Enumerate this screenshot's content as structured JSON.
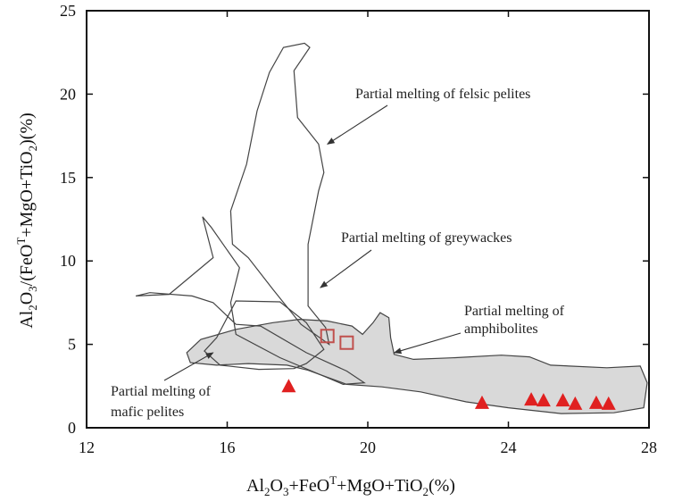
{
  "chart_data": {
    "type": "scatter",
    "xlabel": {
      "a": "Al",
      "a_sub": "2",
      "b": "O",
      "b_sub": "3",
      "c": "+FeO",
      "c_sup": "T",
      "d": "+MgO+TiO",
      "d_sub": "2",
      "e": "(%)"
    },
    "ylabel": {
      "a": "Al",
      "a_sub": "2",
      "b": "O",
      "b_sub": "3",
      "c": "/(FeO",
      "c_sup": "T",
      "d": "+MgO+TiO",
      "d_sub": "2",
      "e": ")(%)"
    },
    "xlim": [
      12,
      28
    ],
    "ylim": [
      0,
      25
    ],
    "x_ticks": [
      "12",
      "16",
      "20",
      "24",
      "28"
    ],
    "x_tick_values": [
      12,
      16,
      20,
      24,
      28
    ],
    "y_ticks": [
      "0",
      "5",
      "10",
      "15",
      "20",
      "25"
    ],
    "y_tick_values": [
      0,
      5,
      10,
      15,
      20,
      25
    ],
    "grid": false,
    "fields": [
      {
        "name": "felsic-pelites",
        "filled": false,
        "points": [
          [
            18.3,
            7.3
          ],
          [
            18.8,
            6.0
          ],
          [
            18.9,
            5.0
          ],
          [
            18.1,
            6.2
          ],
          [
            17.3,
            8.3
          ],
          [
            16.6,
            10.2
          ],
          [
            16.15,
            11.0
          ],
          [
            16.1,
            13.0
          ],
          [
            16.55,
            15.8
          ],
          [
            16.85,
            19.0
          ],
          [
            17.2,
            21.3
          ],
          [
            17.6,
            22.8
          ],
          [
            18.2,
            23.05
          ],
          [
            18.35,
            22.8
          ],
          [
            17.9,
            21.4
          ],
          [
            18.0,
            18.6
          ],
          [
            18.6,
            17.0
          ],
          [
            18.75,
            15.3
          ],
          [
            18.6,
            14.2
          ],
          [
            18.3,
            11.0
          ],
          [
            18.3,
            7.3
          ]
        ]
      },
      {
        "name": "greywackes",
        "filled": false,
        "points": [
          [
            15.6,
            7.5
          ],
          [
            16.25,
            6.2
          ],
          [
            16.95,
            6.1
          ],
          [
            18.25,
            4.5
          ],
          [
            19.4,
            3.4
          ],
          [
            19.9,
            2.7
          ],
          [
            19.3,
            2.6
          ],
          [
            17.5,
            4.2
          ],
          [
            16.25,
            5.6
          ],
          [
            16.1,
            7.5
          ],
          [
            16.35,
            9.6
          ],
          [
            15.55,
            12.0
          ],
          [
            15.3,
            12.65
          ],
          [
            15.6,
            10.2
          ],
          [
            14.35,
            8.0
          ],
          [
            13.4,
            7.9
          ],
          [
            13.8,
            8.1
          ],
          [
            15.0,
            7.9
          ],
          [
            15.6,
            7.5
          ]
        ]
      },
      {
        "name": "mafic-pelites",
        "filled": false,
        "points": [
          [
            15.7,
            5.4
          ],
          [
            16.25,
            7.6
          ],
          [
            17.5,
            7.55
          ],
          [
            18.25,
            6.3
          ],
          [
            18.75,
            4.7
          ],
          [
            18.25,
            3.85
          ],
          [
            17.9,
            3.55
          ],
          [
            16.9,
            3.5
          ],
          [
            15.8,
            3.75
          ],
          [
            15.35,
            4.6
          ],
          [
            15.7,
            5.4
          ]
        ]
      },
      {
        "name": "amphibolites",
        "filled": true,
        "points": [
          [
            14.85,
            4.5
          ],
          [
            15.25,
            5.3
          ],
          [
            16.25,
            5.9
          ],
          [
            17.3,
            6.3
          ],
          [
            18.05,
            6.5
          ],
          [
            18.85,
            6.4
          ],
          [
            19.55,
            6.1
          ],
          [
            19.85,
            5.6
          ],
          [
            20.15,
            6.3
          ],
          [
            20.35,
            6.9
          ],
          [
            20.6,
            6.6
          ],
          [
            20.65,
            5.4
          ],
          [
            20.75,
            4.4
          ],
          [
            21.3,
            4.1
          ],
          [
            22.5,
            4.2
          ],
          [
            23.8,
            4.35
          ],
          [
            24.6,
            4.25
          ],
          [
            25.2,
            3.75
          ],
          [
            26.8,
            3.6
          ],
          [
            27.75,
            3.7
          ],
          [
            27.95,
            2.7
          ],
          [
            27.85,
            1.2
          ],
          [
            27.0,
            0.9
          ],
          [
            25.5,
            0.85
          ],
          [
            24.0,
            1.2
          ],
          [
            22.8,
            1.55
          ],
          [
            21.5,
            2.15
          ],
          [
            20.4,
            2.45
          ],
          [
            19.4,
            2.6
          ],
          [
            18.3,
            3.45
          ],
          [
            17.7,
            3.75
          ],
          [
            16.6,
            3.85
          ],
          [
            15.7,
            3.75
          ],
          [
            14.95,
            3.9
          ],
          [
            14.85,
            4.5
          ]
        ]
      }
    ],
    "series": [
      {
        "marker": "triangle",
        "color": "#e02020",
        "points": [
          [
            17.75,
            2.45
          ],
          [
            23.25,
            1.45
          ],
          [
            24.65,
            1.65
          ],
          [
            25.0,
            1.6
          ],
          [
            25.55,
            1.6
          ],
          [
            25.9,
            1.4
          ],
          [
            26.5,
            1.45
          ],
          [
            26.85,
            1.4
          ]
        ]
      },
      {
        "marker": "open-square",
        "color": "#c0504d",
        "points": [
          [
            18.85,
            5.5
          ],
          [
            19.4,
            5.1
          ]
        ]
      }
    ],
    "annotations": [
      {
        "text": "Partial melting of felsic pelites",
        "arrow_to": [
          18.85,
          17.0
        ]
      },
      {
        "text": "Partial melting of greywackes",
        "arrow_to": [
          18.65,
          8.4
        ]
      },
      {
        "text": "Partial melting of",
        "text2": "amphibolites",
        "arrow_to": [
          20.75,
          4.5
        ]
      },
      {
        "text": "Partial melting of",
        "text2": "mafic pelites",
        "arrow_to": [
          15.6,
          4.5
        ]
      }
    ]
  }
}
